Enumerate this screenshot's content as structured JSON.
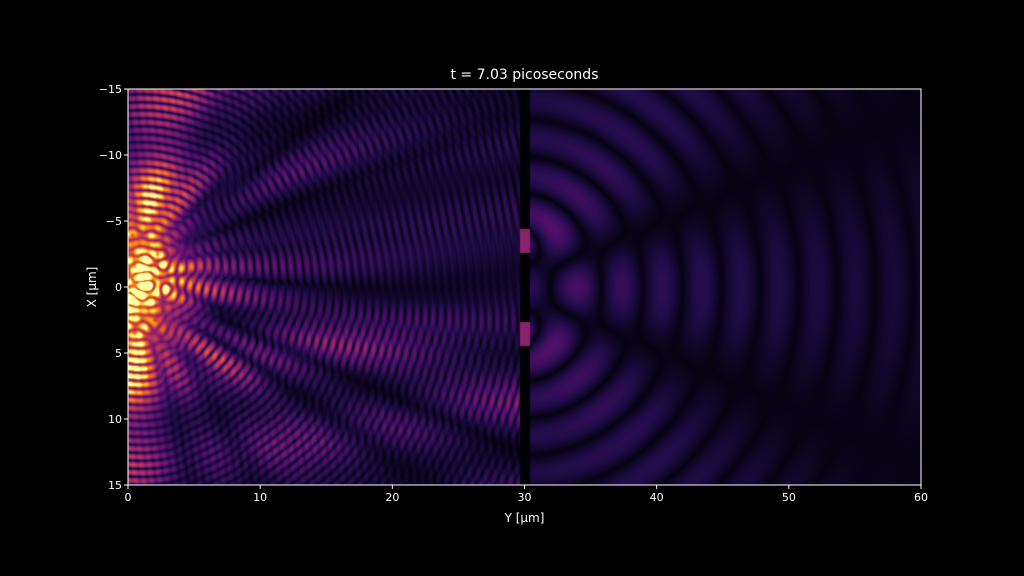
{
  "chart_data": {
    "type": "heatmap",
    "title": "t = 7.03 picoseconds",
    "xlabel": "Y [μm]",
    "ylabel": "X [μm]",
    "xlim": [
      0,
      60
    ],
    "ylim": [
      15,
      -15
    ],
    "x_ticks": [
      0,
      10,
      20,
      30,
      40,
      50,
      60
    ],
    "x_tick_labels": [
      "0",
      "10",
      "20",
      "30",
      "40",
      "50",
      "60"
    ],
    "y_ticks": [
      -15,
      -10,
      -5,
      0,
      5,
      10,
      15
    ],
    "y_tick_labels": [
      "−15",
      "−10",
      "−5",
      "0",
      "5",
      "10",
      "15"
    ],
    "colormap": "inferno",
    "grid": false,
    "legend": "none",
    "colors": {
      "background": "#000000",
      "axes": "#ffffff",
      "barrier": "#000000"
    },
    "features": {
      "source_region_y": [
        0,
        4
      ],
      "barrier_y": 29.8,
      "slit_centers_x": [
        -3.5,
        3.5
      ],
      "field_description_left": "strong interference wavefronts",
      "field_description_right": "diffracted beams from two slits"
    }
  }
}
